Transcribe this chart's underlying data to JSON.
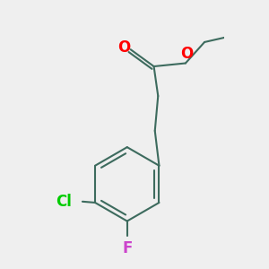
{
  "background_color": "#efefef",
  "bond_color": "#3d6b5e",
  "O_color": "#ff0000",
  "Cl_color": "#00cc00",
  "F_color": "#cc44cc",
  "bond_width": 1.5,
  "figsize": [
    3.0,
    3.0
  ],
  "dpi": 100,
  "xlim": [
    -0.6,
    1.1
  ],
  "ylim": [
    -1.4,
    1.1
  ]
}
